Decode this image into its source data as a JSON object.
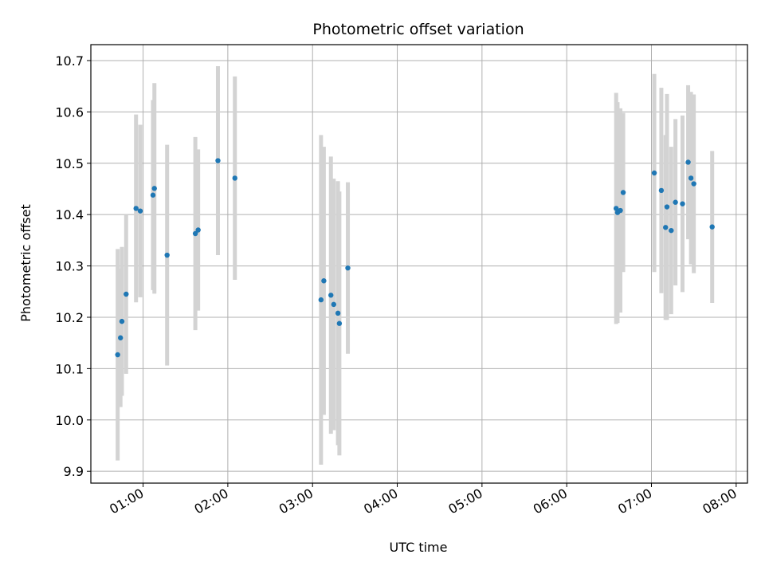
{
  "chart_data": {
    "type": "scatter",
    "title": "Photometric offset variation",
    "xlabel": "UTC time",
    "ylabel": "Photometric offset",
    "grid": true,
    "legend": "none",
    "xlim": [
      "00:23",
      "08:08"
    ],
    "ylim": [
      9.877,
      10.731
    ],
    "x_ticks": [
      "01:00",
      "02:00",
      "03:00",
      "04:00",
      "05:00",
      "06:00",
      "07:00",
      "08:00"
    ],
    "y_ticks": [
      "9.9",
      "10.0",
      "10.1",
      "10.2",
      "10.3",
      "10.4",
      "10.5",
      "10.6",
      "10.7"
    ],
    "colors": {
      "point": "#1f77b4",
      "errorbar": "#d3d3d3",
      "grid": "#b0b0b0"
    },
    "series": [
      {
        "points": [
          {
            "x": "00:42",
            "y": 10.127,
            "err": 0.206
          },
          {
            "x": "00:44",
            "y": 10.16,
            "err": 0.135
          },
          {
            "x": "00:45",
            "y": 10.192,
            "err": 0.145
          },
          {
            "x": "00:48",
            "y": 10.245,
            "err": 0.155
          },
          {
            "x": "00:55",
            "y": 10.412,
            "err": 0.183
          },
          {
            "x": "00:58",
            "y": 10.407,
            "err": 0.168
          },
          {
            "x": "01:07",
            "y": 10.438,
            "err": 0.185
          },
          {
            "x": "01:08",
            "y": 10.451,
            "err": 0.205
          },
          {
            "x": "01:17",
            "y": 10.321,
            "err": 0.215
          },
          {
            "x": "01:37",
            "y": 10.363,
            "err": 0.188
          },
          {
            "x": "01:39",
            "y": 10.37,
            "err": 0.157
          },
          {
            "x": "01:53",
            "y": 10.505,
            "err": 0.184
          },
          {
            "x": "02:05",
            "y": 10.471,
            "err": 0.198
          },
          {
            "x": "03:06",
            "y": 10.234,
            "err": 0.321
          },
          {
            "x": "03:08",
            "y": 10.271,
            "err": 0.261
          },
          {
            "x": "03:13",
            "y": 10.243,
            "err": 0.27
          },
          {
            "x": "03:15",
            "y": 10.225,
            "err": 0.245
          },
          {
            "x": "03:18",
            "y": 10.208,
            "err": 0.257
          },
          {
            "x": "03:19",
            "y": 10.188,
            "err": 0.257
          },
          {
            "x": "03:25",
            "y": 10.296,
            "err": 0.167
          },
          {
            "x": "06:35",
            "y": 10.412,
            "err": 0.225
          },
          {
            "x": "06:36",
            "y": 10.404,
            "err": 0.215
          },
          {
            "x": "06:38",
            "y": 10.408,
            "err": 0.199
          },
          {
            "x": "06:40",
            "y": 10.443,
            "err": 0.155
          },
          {
            "x": "07:02",
            "y": 10.481,
            "err": 0.193
          },
          {
            "x": "07:07",
            "y": 10.447,
            "err": 0.2
          },
          {
            "x": "07:10",
            "y": 10.375,
            "err": 0.18
          },
          {
            "x": "07:11",
            "y": 10.415,
            "err": 0.22
          },
          {
            "x": "07:14",
            "y": 10.369,
            "err": 0.163
          },
          {
            "x": "07:17",
            "y": 10.424,
            "err": 0.162
          },
          {
            "x": "07:22",
            "y": 10.421,
            "err": 0.172
          },
          {
            "x": "07:26",
            "y": 10.502,
            "err": 0.15
          },
          {
            "x": "07:28",
            "y": 10.471,
            "err": 0.168
          },
          {
            "x": "07:30",
            "y": 10.46,
            "err": 0.174
          },
          {
            "x": "07:43",
            "y": 10.376,
            "err": 0.148
          }
        ]
      }
    ]
  }
}
